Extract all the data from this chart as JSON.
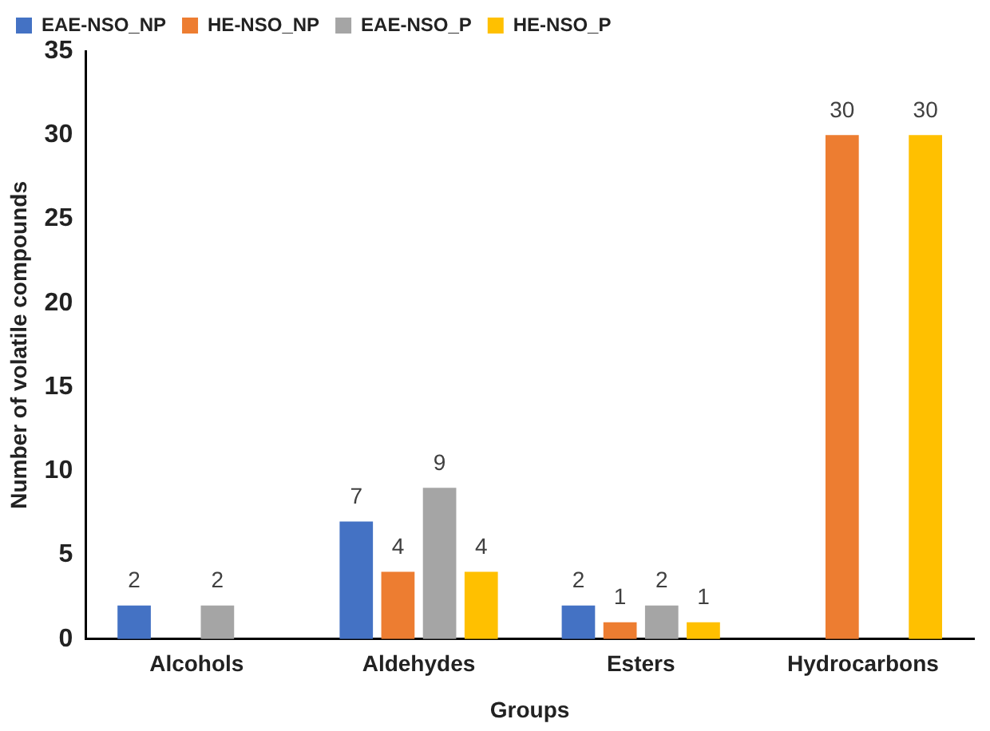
{
  "chart_data": {
    "type": "bar",
    "xlabel": "Groups",
    "ylabel": "Number of volatile compounds",
    "categories": [
      "Alcohols",
      "Aldehydes",
      "Esters",
      "Hydrocarbons"
    ],
    "series": [
      {
        "name": "EAE-NSO_NP",
        "color": "#4472c4",
        "values": [
          2,
          7,
          2,
          0
        ],
        "value_labels": [
          "2",
          "7",
          "2",
          null
        ]
      },
      {
        "name": "HE-NSO_NP",
        "color": "#ed7d31",
        "values": [
          0,
          4,
          1,
          30
        ],
        "value_labels": [
          null,
          "4",
          "1",
          "30"
        ]
      },
      {
        "name": "EAE-NSO_P",
        "color": "#a5a5a5",
        "values": [
          2,
          9,
          2,
          0
        ],
        "value_labels": [
          "2",
          "9",
          "2",
          null
        ]
      },
      {
        "name": "HE-NSO_P",
        "color": "#ffc000",
        "values": [
          0,
          4,
          1,
          30
        ],
        "value_labels": [
          null,
          "4",
          "1",
          "30"
        ]
      }
    ],
    "ylim": [
      0,
      35
    ],
    "yticks": [
      0,
      5,
      10,
      15,
      20,
      25,
      30,
      35
    ],
    "grid": false,
    "legend": "top"
  }
}
